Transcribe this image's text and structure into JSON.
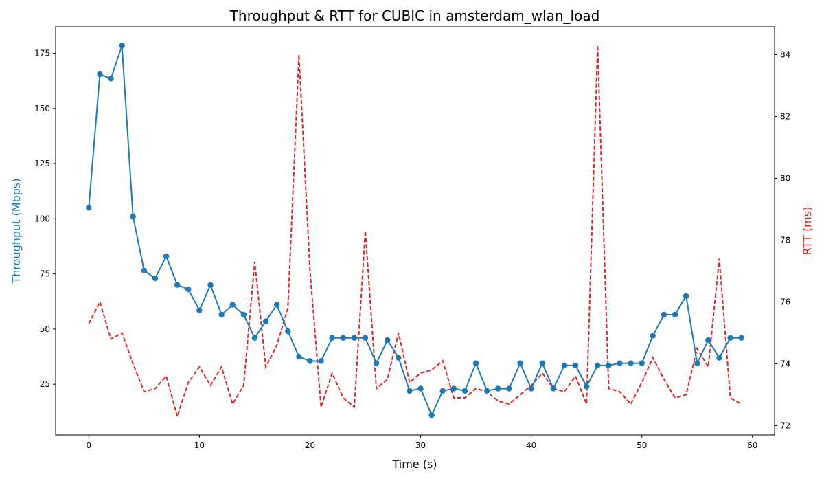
{
  "chart_data": {
    "type": "line",
    "title": "Throughput & RTT for CUBIC in amsterdam_wlan_load",
    "xlabel": "Time (s)",
    "ylabel_left": "Throughput (Mbps)",
    "ylabel_right": "RTT (ms)",
    "xlim": [
      -3,
      62
    ],
    "ylim_left": [
      2,
      187
    ],
    "ylim_right": [
      71.7,
      84.9
    ],
    "x_ticks": [
      0,
      10,
      20,
      30,
      40,
      50,
      60
    ],
    "y_left_ticks": [
      25,
      50,
      75,
      100,
      125,
      150,
      175
    ],
    "y_right_ticks": [
      72,
      74,
      76,
      78,
      80,
      82,
      84
    ],
    "grid": false,
    "legend": "none",
    "colors": {
      "throughput": "#1f77b4",
      "rtt": "#d62728"
    },
    "x": [
      0,
      1,
      2,
      3,
      4,
      5,
      6,
      7,
      8,
      9,
      10,
      11,
      12,
      13,
      14,
      15,
      16,
      17,
      18,
      19,
      20,
      21,
      22,
      23,
      24,
      25,
      26,
      27,
      28,
      29,
      30,
      31,
      32,
      33,
      34,
      35,
      36,
      37,
      38,
      39,
      40,
      41,
      42,
      43,
      44,
      45,
      46,
      47,
      48,
      49,
      50,
      51,
      52,
      53,
      54,
      55,
      56,
      57,
      58,
      59
    ],
    "series": [
      {
        "axis": "left",
        "style": "solid-marker",
        "values": [
          105,
          165.5,
          163.5,
          178.5,
          101,
          76.5,
          73,
          83,
          70,
          68,
          58.5,
          70,
          56.5,
          61,
          56.5,
          46,
          53.5,
          61,
          49,
          37.5,
          35.5,
          35.5,
          46,
          46,
          46,
          46,
          34.5,
          45,
          37,
          22,
          23,
          11,
          22,
          23,
          22,
          34.5,
          22,
          23,
          23,
          34.5,
          23,
          34.5,
          23,
          33.5,
          33.5,
          24,
          33.5,
          33.5,
          34.5,
          34.5,
          34.5,
          47,
          56.5,
          56.5,
          65,
          34.5,
          45,
          37,
          46,
          46
        ]
      },
      {
        "axis": "right",
        "style": "dashed",
        "values": [
          75.3,
          76.0,
          74.8,
          75.0,
          74.0,
          73.1,
          73.2,
          73.6,
          72.3,
          73.4,
          73.9,
          73.3,
          73.9,
          72.7,
          73.3,
          77.3,
          73.9,
          74.6,
          75.8,
          84.0,
          77.0,
          72.6,
          73.7,
          72.9,
          72.6,
          78.3,
          73.2,
          73.5,
          75.0,
          73.4,
          73.7,
          73.8,
          74.1,
          72.9,
          72.9,
          73.2,
          73.1,
          72.8,
          72.7,
          73.0,
          73.3,
          73.7,
          73.2,
          73.1,
          73.6,
          72.7,
          84.3,
          73.2,
          73.1,
          72.7,
          73.4,
          74.2,
          73.5,
          72.9,
          73.0,
          74.5,
          73.9,
          77.4,
          72.9,
          72.7
        ]
      }
    ]
  }
}
